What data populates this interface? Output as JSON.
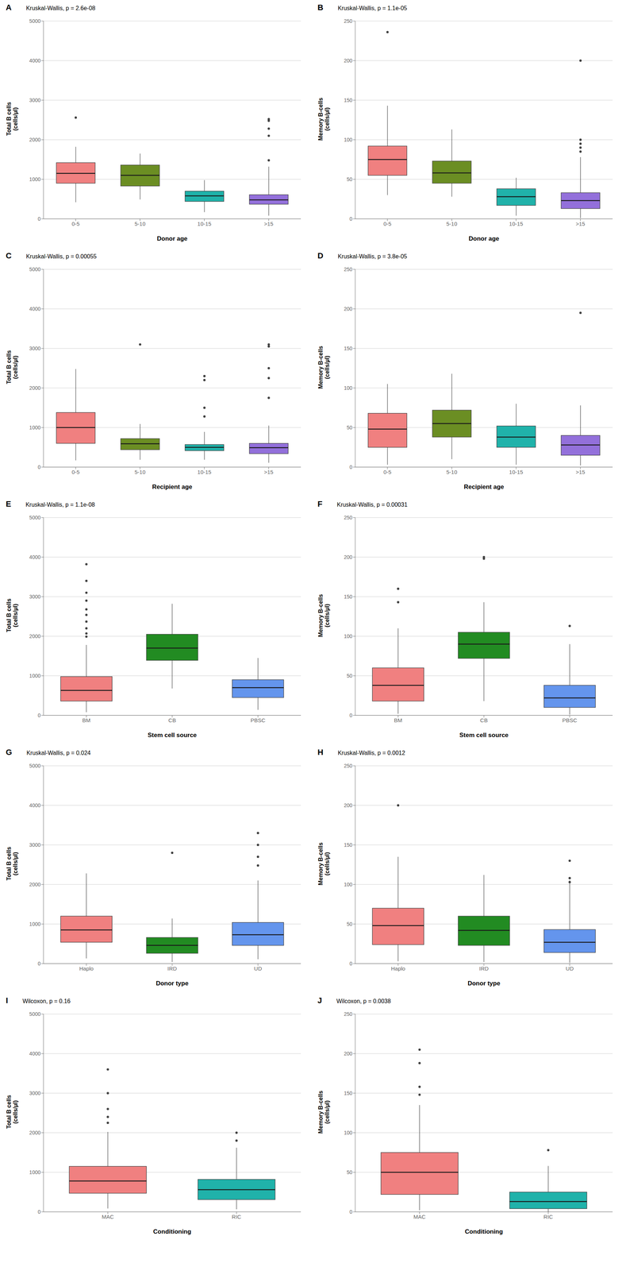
{
  "chart_data": [
    {
      "type": "box",
      "panel_label": "A",
      "title": "Kruskal-Wallis, p = 2.6e-08",
      "ylabel": "Total B cells\n(cells/µl)",
      "xlabel": "Donor age",
      "ylim": [
        0,
        5000
      ],
      "yticks": [
        0,
        1000,
        2000,
        3000,
        4000,
        5000
      ],
      "grid": true,
      "categories": [
        "0-5",
        "5-10",
        "10-15",
        ">15"
      ],
      "colors": [
        "#F08080",
        "#6B8E23",
        "#20B2AA",
        "#9370DB"
      ],
      "medians": [
        1150,
        1100,
        580,
        480
      ],
      "q1": [
        900,
        830,
        440,
        370
      ],
      "q3": [
        1420,
        1360,
        700,
        610
      ],
      "whisker_low": [
        420,
        490,
        170,
        80
      ],
      "whisker_high": [
        1820,
        1650,
        980,
        1320
      ],
      "outliers": [
        [
          2560
        ],
        [],
        [],
        [
          1480,
          2100,
          2280,
          2480,
          2520
        ]
      ]
    },
    {
      "type": "box",
      "panel_label": "B",
      "title": "Kruskal-Wallis, p = 1.1e-05",
      "ylabel": "Memory B-cells\n(cells/µl)",
      "xlabel": "Donor age",
      "ylim": [
        0,
        250
      ],
      "yticks": [
        0,
        50,
        100,
        150,
        200,
        250
      ],
      "grid": true,
      "categories": [
        "0-5",
        "5-10",
        "10-15",
        ">15"
      ],
      "colors": [
        "#F08080",
        "#6B8E23",
        "#20B2AA",
        "#9370DB"
      ],
      "medians": [
        75,
        58,
        28,
        23
      ],
      "q1": [
        55,
        45,
        17,
        13
      ],
      "q3": [
        92,
        73,
        38,
        33
      ],
      "whisker_low": [
        30,
        28,
        4,
        1
      ],
      "whisker_high": [
        143,
        113,
        52,
        78
      ],
      "outliers": [
        [
          236
        ],
        [],
        [],
        [
          85,
          90,
          95,
          100,
          200
        ]
      ]
    },
    {
      "type": "box",
      "panel_label": "C",
      "title": "Kruskal-Wallis, p = 0.00055",
      "ylabel": "Total B cells\n(cells/µl)",
      "xlabel": "Recipient age",
      "ylim": [
        0,
        5000
      ],
      "yticks": [
        0,
        1000,
        2000,
        3000,
        4000,
        5000
      ],
      "grid": true,
      "categories": [
        "0-5",
        "5-10",
        "10-15",
        ">15"
      ],
      "colors": [
        "#F08080",
        "#6B8E23",
        "#20B2AA",
        "#9370DB"
      ],
      "medians": [
        1000,
        590,
        500,
        490
      ],
      "q1": [
        600,
        440,
        415,
        340
      ],
      "q3": [
        1380,
        720,
        570,
        600
      ],
      "whisker_low": [
        170,
        185,
        185,
        110
      ],
      "whisker_high": [
        2480,
        1090,
        890,
        1050
      ],
      "outliers": [
        [],
        [
          3100
        ],
        [
          1280,
          1500,
          2200,
          2300
        ],
        [
          1750,
          2250,
          2500,
          3050,
          3100
        ]
      ]
    },
    {
      "type": "box",
      "panel_label": "D",
      "title": "Kruskal-Wallis, p = 3.8e-05",
      "ylabel": "Memory B-cells\n(cells/µl)",
      "xlabel": "Recipient age",
      "ylim": [
        0,
        250
      ],
      "yticks": [
        0,
        50,
        100,
        150,
        200,
        250
      ],
      "grid": true,
      "categories": [
        "0-5",
        "5-10",
        "10-15",
        ">15"
      ],
      "colors": [
        "#F08080",
        "#6B8E23",
        "#20B2AA",
        "#9370DB"
      ],
      "medians": [
        48,
        55,
        38,
        28
      ],
      "q1": [
        25,
        38,
        25,
        15
      ],
      "q3": [
        68,
        72,
        52,
        40
      ],
      "whisker_low": [
        3,
        10,
        3,
        2
      ],
      "whisker_high": [
        105,
        118,
        80,
        78
      ],
      "outliers": [
        [],
        [],
        [],
        [
          195
        ]
      ]
    },
    {
      "type": "box",
      "panel_label": "E",
      "title": "Kruskal-Wallis, p = 1.1e-08",
      "ylabel": "Total B cells\n(cells/µl)",
      "xlabel": "Stem cell source",
      "ylim": [
        0,
        5000
      ],
      "yticks": [
        0,
        1000,
        2000,
        3000,
        4000,
        5000
      ],
      "grid": true,
      "categories": [
        "BM",
        "CB",
        "PBSC"
      ],
      "colors": [
        "#F08080",
        "#228B22",
        "#6495ED"
      ],
      "medians": [
        630,
        1700,
        700
      ],
      "q1": [
        360,
        1390,
        450
      ],
      "q3": [
        980,
        2050,
        900
      ],
      "whisker_low": [
        80,
        680,
        140
      ],
      "whisker_high": [
        1780,
        2820,
        1450
      ],
      "outliers": [
        [
          1990,
          2070,
          2200,
          2370,
          2540,
          2680,
          2900,
          3100,
          3400,
          3820
        ],
        [],
        []
      ]
    },
    {
      "type": "box",
      "panel_label": "F",
      "title": "Kruskal-Wallis, p = 0.00031",
      "ylabel": "Memory B-cells\n(cells/µl)",
      "xlabel": "Stem cell source",
      "ylim": [
        0,
        250
      ],
      "yticks": [
        0,
        50,
        100,
        150,
        200,
        250
      ],
      "grid": true,
      "categories": [
        "BM",
        "CB",
        "PBSC"
      ],
      "colors": [
        "#F08080",
        "#228B22",
        "#6495ED"
      ],
      "medians": [
        38,
        90,
        22
      ],
      "q1": [
        18,
        72,
        10
      ],
      "q3": [
        60,
        105,
        38
      ],
      "whisker_low": [
        2,
        18,
        1
      ],
      "whisker_high": [
        110,
        143,
        90
      ],
      "outliers": [
        [
          143,
          160
        ],
        [
          198,
          200
        ],
        [
          113
        ]
      ]
    },
    {
      "type": "box",
      "panel_label": "G",
      "title": "Kruskal-Wallis, p = 0.024",
      "ylabel": "Total B cells\n(cells/µl)",
      "xlabel": "Donor type",
      "ylim": [
        0,
        5000
      ],
      "yticks": [
        0,
        1000,
        2000,
        3000,
        4000,
        5000
      ],
      "grid": true,
      "categories": [
        "Haplo",
        "IRD",
        "UD"
      ],
      "colors": [
        "#F08080",
        "#228B22",
        "#6495ED"
      ],
      "medians": [
        850,
        460,
        730
      ],
      "q1": [
        540,
        260,
        460
      ],
      "q3": [
        1200,
        660,
        1040
      ],
      "whisker_low": [
        130,
        40,
        110
      ],
      "whisker_high": [
        2280,
        1140,
        2100
      ],
      "outliers": [
        [],
        [
          2800
        ],
        [
          2480,
          2700,
          3000,
          3300
        ]
      ]
    },
    {
      "type": "box",
      "panel_label": "H",
      "title": "Kruskal-Wallis, p = 0.0012",
      "ylabel": "Memory B-cells\n(cells/µl)",
      "xlabel": "Donor type",
      "ylim": [
        0,
        250
      ],
      "yticks": [
        0,
        50,
        100,
        150,
        200,
        250
      ],
      "grid": true,
      "categories": [
        "Haplo",
        "IRD",
        "UD"
      ],
      "colors": [
        "#F08080",
        "#228B22",
        "#6495ED"
      ],
      "medians": [
        48,
        42,
        27
      ],
      "q1": [
        24,
        23,
        14
      ],
      "q3": [
        70,
        60,
        43
      ],
      "whisker_low": [
        3,
        2,
        1
      ],
      "whisker_high": [
        135,
        112,
        105
      ],
      "outliers": [
        [
          200
        ],
        [],
        [
          103,
          108,
          130
        ]
      ]
    },
    {
      "type": "box",
      "panel_label": "I",
      "title": "Wilcoxon, p = 0.16",
      "ylabel": "Total B cells\n(cells/µl)",
      "xlabel": "Conditioning",
      "ylim": [
        0,
        5000
      ],
      "yticks": [
        0,
        1000,
        2000,
        3000,
        4000,
        5000
      ],
      "grid": true,
      "categories": [
        "MAC",
        "RIC"
      ],
      "colors": [
        "#F08080",
        "#20B2AA"
      ],
      "medians": [
        780,
        560
      ],
      "q1": [
        470,
        310
      ],
      "q3": [
        1150,
        820
      ],
      "whisker_low": [
        85,
        65
      ],
      "whisker_high": [
        2020,
        1620
      ],
      "outliers": [
        [
          2250,
          2400,
          2600,
          3000,
          3600
        ],
        [
          1800,
          2000
        ]
      ]
    },
    {
      "type": "box",
      "panel_label": "J",
      "title": "Wilcoxon, p = 0.0038",
      "ylabel": "Memory B-cells\n(cells/µl)",
      "xlabel": "Conditioning",
      "ylim": [
        0,
        250
      ],
      "yticks": [
        0,
        50,
        100,
        150,
        200,
        250
      ],
      "grid": true,
      "categories": [
        "MAC",
        "RIC"
      ],
      "colors": [
        "#F08080",
        "#20B2AA"
      ],
      "medians": [
        50,
        13
      ],
      "q1": [
        22,
        4
      ],
      "q3": [
        75,
        25
      ],
      "whisker_low": [
        2,
        0
      ],
      "whisker_high": [
        135,
        58
      ],
      "outliers": [
        [
          148,
          158,
          188,
          205
        ],
        [
          78
        ]
      ]
    }
  ]
}
